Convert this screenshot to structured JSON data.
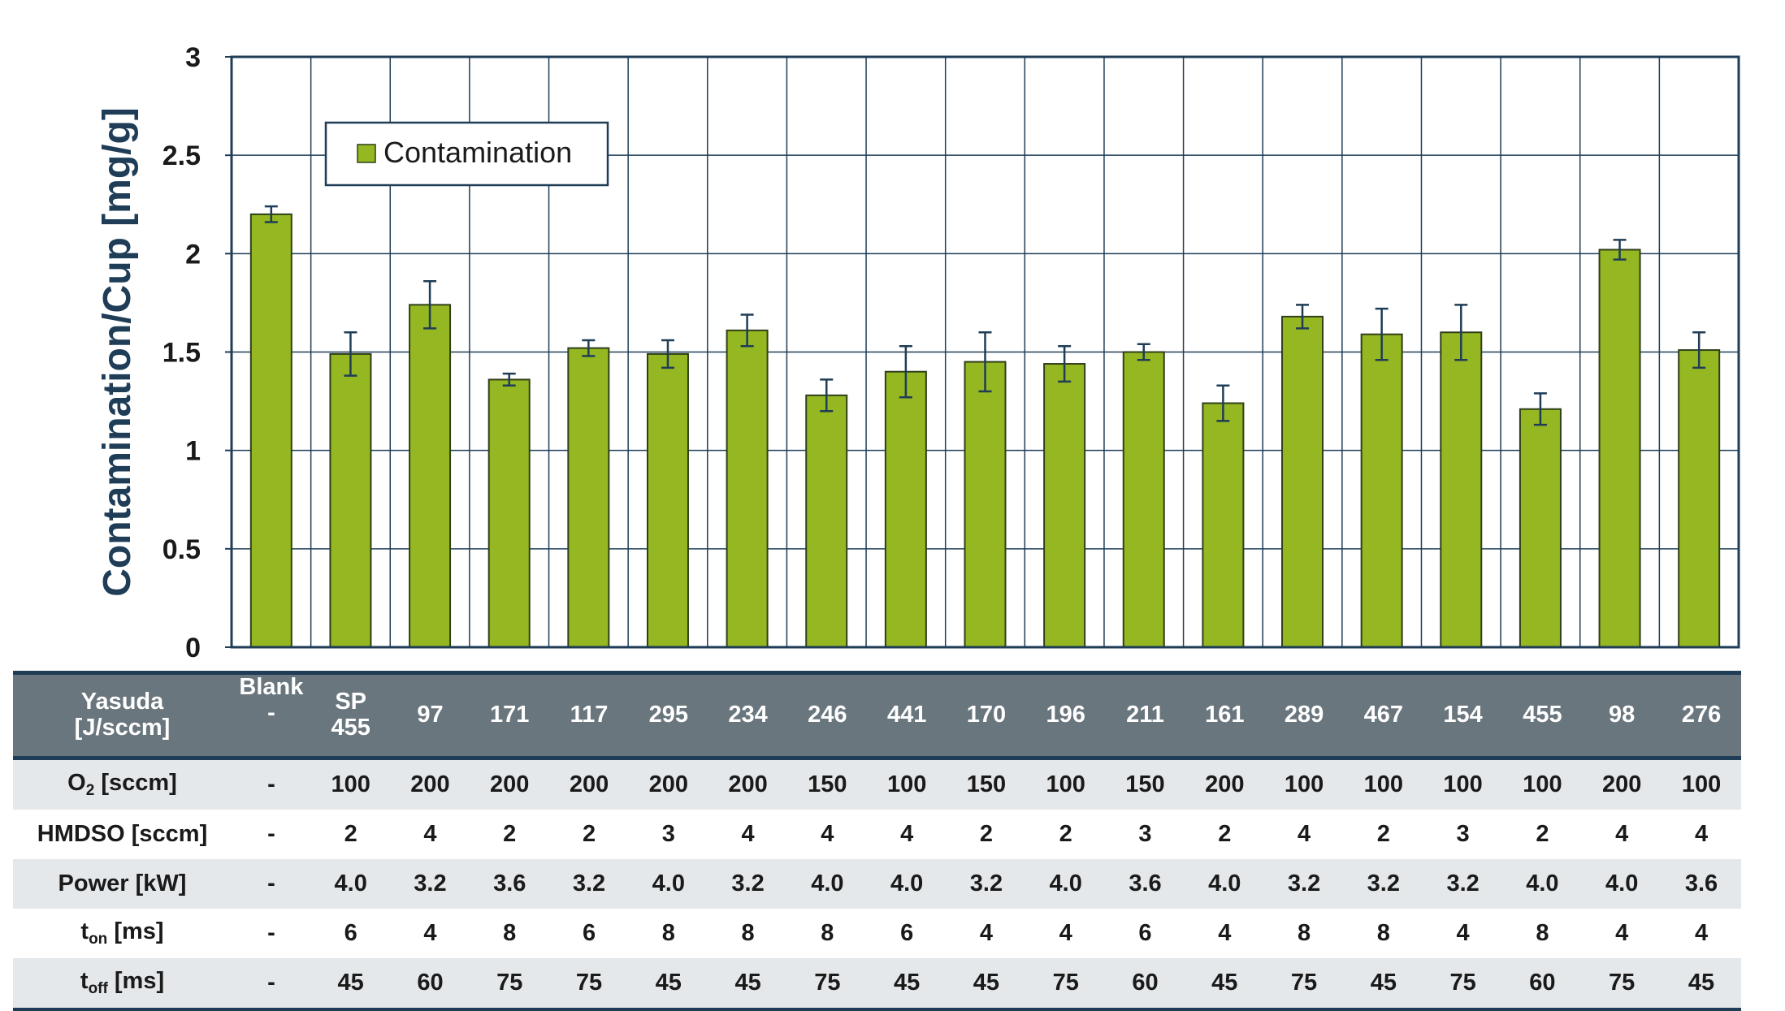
{
  "chart_data": {
    "type": "bar",
    "ylabel": "Contamination/Cup [mg/g]",
    "ylim": [
      0,
      3
    ],
    "yticks": [
      "0",
      "0.5",
      "1",
      "1.5",
      "2",
      "2.5",
      "3"
    ],
    "grid": true,
    "legend_position": "top-left",
    "series": [
      {
        "name": "Contamination",
        "color": "#95b722",
        "values": [
          2.2,
          1.49,
          1.74,
          1.36,
          1.52,
          1.49,
          1.61,
          1.28,
          1.4,
          1.45,
          1.44,
          1.5,
          1.24,
          1.68,
          1.59,
          1.6,
          1.21,
          2.02,
          1.51
        ],
        "errors": [
          0.04,
          0.11,
          0.12,
          0.03,
          0.04,
          0.07,
          0.08,
          0.08,
          0.13,
          0.15,
          0.09,
          0.04,
          0.09,
          0.06,
          0.13,
          0.14,
          0.08,
          0.05,
          0.09
        ]
      }
    ]
  },
  "table": {
    "rows": [
      {
        "label_main": "Yasuda",
        "label_sub": "",
        "label_unit": "[J/sccm]",
        "cells": [
          [
            "Blank",
            "-"
          ],
          [
            "SP",
            "455"
          ],
          [
            "97"
          ],
          [
            "171"
          ],
          [
            "117"
          ],
          [
            "295"
          ],
          [
            "234"
          ],
          [
            "246"
          ],
          [
            "441"
          ],
          [
            "170"
          ],
          [
            "196"
          ],
          [
            "211"
          ],
          [
            "161"
          ],
          [
            "289"
          ],
          [
            "467"
          ],
          [
            "154"
          ],
          [
            "455"
          ],
          [
            "98"
          ],
          [
            "276"
          ]
        ]
      },
      {
        "label_main": "O",
        "label_sub": "2",
        "label_unit": " [sccm]",
        "cells": [
          [
            "-"
          ],
          [
            "100"
          ],
          [
            "200"
          ],
          [
            "200"
          ],
          [
            "200"
          ],
          [
            "200"
          ],
          [
            "200"
          ],
          [
            "150"
          ],
          [
            "100"
          ],
          [
            "150"
          ],
          [
            "100"
          ],
          [
            "150"
          ],
          [
            "200"
          ],
          [
            "100"
          ],
          [
            "100"
          ],
          [
            "100"
          ],
          [
            "100"
          ],
          [
            "200"
          ],
          [
            "100"
          ]
        ]
      },
      {
        "label_main": "HMDSO [sccm]",
        "label_sub": "",
        "label_unit": "",
        "cells": [
          [
            "-"
          ],
          [
            "2"
          ],
          [
            "4"
          ],
          [
            "2"
          ],
          [
            "2"
          ],
          [
            "3"
          ],
          [
            "4"
          ],
          [
            "4"
          ],
          [
            "4"
          ],
          [
            "2"
          ],
          [
            "2"
          ],
          [
            "3"
          ],
          [
            "2"
          ],
          [
            "4"
          ],
          [
            "2"
          ],
          [
            "3"
          ],
          [
            "2"
          ],
          [
            "4"
          ],
          [
            "4"
          ]
        ]
      },
      {
        "label_main": "Power [kW]",
        "label_sub": "",
        "label_unit": "",
        "cells": [
          [
            "-"
          ],
          [
            "4.0"
          ],
          [
            "3.2"
          ],
          [
            "3.6"
          ],
          [
            "3.2"
          ],
          [
            "4.0"
          ],
          [
            "3.2"
          ],
          [
            "4.0"
          ],
          [
            "4.0"
          ],
          [
            "3.2"
          ],
          [
            "4.0"
          ],
          [
            "3.6"
          ],
          [
            "4.0"
          ],
          [
            "3.2"
          ],
          [
            "3.2"
          ],
          [
            "3.2"
          ],
          [
            "4.0"
          ],
          [
            "4.0"
          ],
          [
            "3.6"
          ]
        ]
      },
      {
        "label_main": "t",
        "label_sub": "on",
        "label_unit": " [ms]",
        "cells": [
          [
            "-"
          ],
          [
            "6"
          ],
          [
            "4"
          ],
          [
            "8"
          ],
          [
            "6"
          ],
          [
            "8"
          ],
          [
            "8"
          ],
          [
            "8"
          ],
          [
            "6"
          ],
          [
            "4"
          ],
          [
            "4"
          ],
          [
            "6"
          ],
          [
            "4"
          ],
          [
            "8"
          ],
          [
            "8"
          ],
          [
            "4"
          ],
          [
            "8"
          ],
          [
            "4"
          ],
          [
            "4"
          ]
        ]
      },
      {
        "label_main": "t",
        "label_sub": "off",
        "label_unit": " [ms]",
        "cells": [
          [
            "-"
          ],
          [
            "45"
          ],
          [
            "60"
          ],
          [
            "75"
          ],
          [
            "75"
          ],
          [
            "45"
          ],
          [
            "45"
          ],
          [
            "75"
          ],
          [
            "45"
          ],
          [
            "45"
          ],
          [
            "75"
          ],
          [
            "60"
          ],
          [
            "45"
          ],
          [
            "75"
          ],
          [
            "45"
          ],
          [
            "75"
          ],
          [
            "60"
          ],
          [
            "75"
          ],
          [
            "45"
          ]
        ]
      }
    ]
  }
}
